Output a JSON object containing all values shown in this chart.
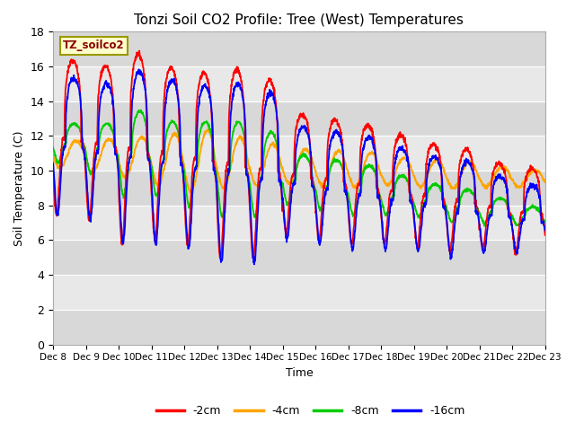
{
  "title": "Tonzi Soil CO2 Profile: Tree (West) Temperatures",
  "xlabel": "Time",
  "ylabel": "Soil Temperature (C)",
  "legend_label": "TZ_soilco2",
  "ylim": [
    0,
    18
  ],
  "yticks": [
    0,
    2,
    4,
    6,
    8,
    10,
    12,
    14,
    16,
    18
  ],
  "xtick_labels": [
    "Dec 8",
    "Dec 9",
    "Dec 10",
    "Dec 11",
    "Dec 12",
    "Dec 13",
    "Dec 14",
    "Dec 15",
    "Dec 16",
    "Dec 17",
    "Dec 18",
    "Dec 19",
    "Dec 20",
    "Dec 21",
    "Dec 22",
    "Dec 23"
  ],
  "series_labels": [
    "-2cm",
    "-4cm",
    "-8cm",
    "-16cm"
  ],
  "series_colors": [
    "#ff0000",
    "#ffa500",
    "#00cc00",
    "#0000ff"
  ],
  "line_width": 1.3,
  "background_color": "#ffffff",
  "plot_bg_color": "#e8e8e8",
  "band_even_color": "#d8d8d8",
  "band_odd_color": "#e8e8e8",
  "grid_color": "#ffffff",
  "annotation_box_color": "#ffffcc",
  "annotation_text_color": "#8b0000",
  "annotation_border_color": "#999900"
}
